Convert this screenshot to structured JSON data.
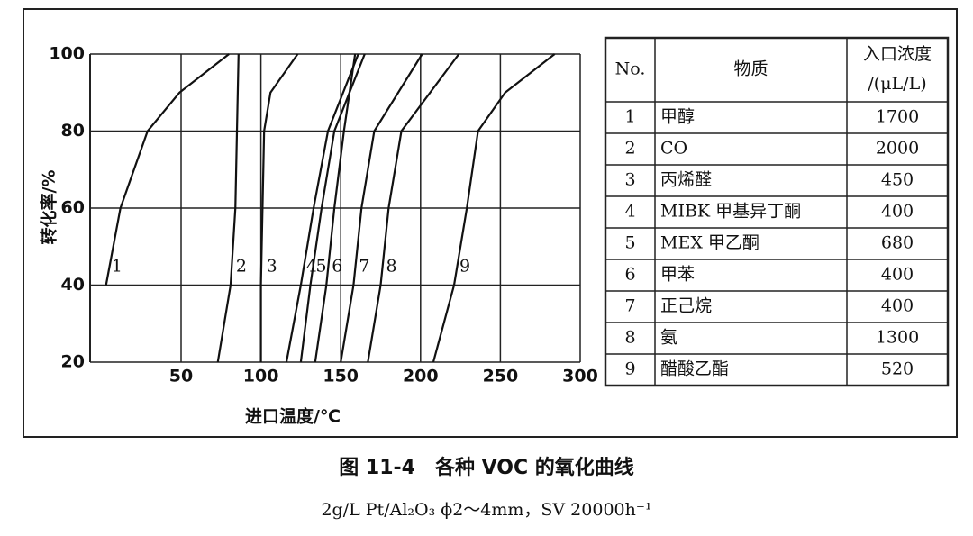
{
  "chart_data": {
    "type": "line",
    "x_label": "进口温度/℃",
    "y_label": "转化率/%",
    "xlim": [
      -7,
      300
    ],
    "xticks": [
      50,
      100,
      150,
      200,
      250,
      300
    ],
    "ylim": [
      20,
      100
    ],
    "yticks": [
      20,
      40,
      60,
      80,
      100
    ],
    "grid": true,
    "color": "#111111",
    "series": [
      {
        "name": "1",
        "x": [
          3,
          12,
          29,
          49,
          80
        ],
        "values": [
          40,
          60,
          80,
          90,
          100
        ]
      },
      {
        "name": "2",
        "x": [
          73,
          81,
          84,
          85,
          86
        ],
        "values": [
          20,
          40,
          60,
          80,
          100
        ]
      },
      {
        "name": "3",
        "x": [
          100,
          100,
          101,
          102,
          106,
          123
        ],
        "values": [
          20,
          40,
          60,
          80,
          90,
          100
        ]
      },
      {
        "name": "4",
        "x": [
          116,
          125,
          133,
          142,
          161
        ],
        "values": [
          20,
          40,
          60,
          80,
          100
        ]
      },
      {
        "name": "5",
        "x": [
          125,
          131,
          138,
          146,
          165
        ],
        "values": [
          20,
          40,
          60,
          80,
          100
        ]
      },
      {
        "name": "6",
        "x": [
          134,
          141,
          146,
          152,
          159
        ],
        "values": [
          20,
          40,
          60,
          80,
          100
        ]
      },
      {
        "name": "7",
        "x": [
          150,
          158,
          163,
          171,
          201
        ],
        "values": [
          20,
          40,
          60,
          80,
          100
        ]
      },
      {
        "name": "8",
        "x": [
          167,
          175,
          180,
          188,
          224
        ],
        "values": [
          20,
          40,
          60,
          80,
          100
        ]
      },
      {
        "name": "9",
        "x": [
          208,
          221,
          229,
          236,
          253,
          284
        ],
        "values": [
          20,
          40,
          60,
          80,
          90,
          100
        ]
      }
    ]
  },
  "table": {
    "header": [
      "No.",
      "物质",
      "入口浓度",
      "/(μL/L)"
    ],
    "rows": [
      [
        "1",
        "甲醇",
        "1700"
      ],
      [
        "2",
        "CO",
        "2000"
      ],
      [
        "3",
        "丙烯醛",
        "450"
      ],
      [
        "4",
        "MIBK 甲基异丁酮",
        "400"
      ],
      [
        "5",
        "MEX 甲乙酮",
        "680"
      ],
      [
        "6",
        "甲苯",
        "400"
      ],
      [
        "7",
        "正己烷",
        "400"
      ],
      [
        "8",
        "氨",
        "1300"
      ],
      [
        "9",
        "醋酸乙酯",
        "520"
      ]
    ]
  },
  "caption": {
    "title": "图 11-4　各种 VOC 的氧化曲线",
    "subtitle": "2g/L Pt/Al₂O₃ ϕ2～4mm，SV 20000h⁻¹"
  }
}
